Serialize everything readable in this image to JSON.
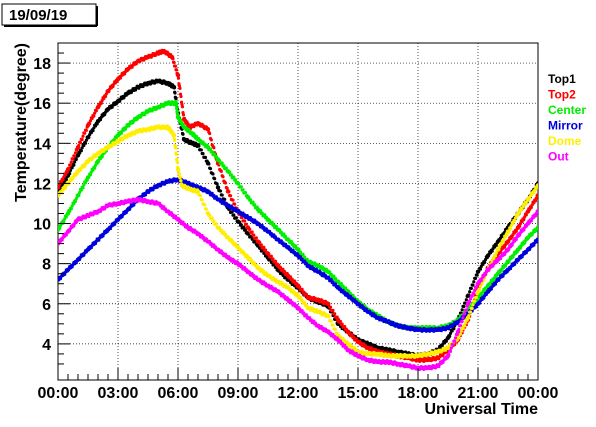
{
  "date_label": "19/09/19",
  "chart_data": {
    "type": "scatter",
    "xlabel": "Universal Time",
    "ylabel": "Temperature(degree)",
    "xlim": [
      0,
      24
    ],
    "ylim": [
      2.2,
      19.0
    ],
    "x_ticks": [
      {
        "value": 0,
        "label": "00:00"
      },
      {
        "value": 3,
        "label": "03:00"
      },
      {
        "value": 6,
        "label": "06:00"
      },
      {
        "value": 9,
        "label": "09:00"
      },
      {
        "value": 12,
        "label": "12:00"
      },
      {
        "value": 15,
        "label": "15:00"
      },
      {
        "value": 18,
        "label": "18:00"
      },
      {
        "value": 21,
        "label": "21:00"
      },
      {
        "value": 24,
        "label": "00:00"
      }
    ],
    "y_ticks": [
      4,
      6,
      8,
      10,
      12,
      14,
      16,
      18
    ],
    "grid": true,
    "legend_position": "right",
    "series": [
      {
        "name": "Top1",
        "color": "#000000",
        "points": [
          [
            0,
            11.6
          ],
          [
            0.5,
            12.4
          ],
          [
            1,
            13.4
          ],
          [
            1.5,
            14.3
          ],
          [
            2,
            15.1
          ],
          [
            2.5,
            15.7
          ],
          [
            3,
            16.1
          ],
          [
            3.5,
            16.5
          ],
          [
            4,
            16.8
          ],
          [
            4.5,
            17.0
          ],
          [
            5,
            17.1
          ],
          [
            5.5,
            17.0
          ],
          [
            5.8,
            16.8
          ],
          [
            6.0,
            15.5
          ],
          [
            6.3,
            14.2
          ],
          [
            6.7,
            14.0
          ],
          [
            7.0,
            13.9
          ],
          [
            7.5,
            13.0
          ],
          [
            8,
            11.8
          ],
          [
            8.5,
            10.8
          ],
          [
            9,
            10.1
          ],
          [
            9.5,
            9.5
          ],
          [
            10,
            8.9
          ],
          [
            10.5,
            8.3
          ],
          [
            11,
            7.7
          ],
          [
            11.5,
            7.2
          ],
          [
            12,
            6.8
          ],
          [
            12.5,
            6.3
          ],
          [
            13,
            6.1
          ],
          [
            13.5,
            5.9
          ],
          [
            14,
            5.0
          ],
          [
            14.5,
            4.6
          ],
          [
            15,
            4.2
          ],
          [
            15.5,
            4.0
          ],
          [
            16,
            3.8
          ],
          [
            16.5,
            3.7
          ],
          [
            17,
            3.6
          ],
          [
            17.5,
            3.5
          ],
          [
            18,
            3.4
          ],
          [
            18.5,
            3.5
          ],
          [
            19,
            3.7
          ],
          [
            19.5,
            4.3
          ],
          [
            20,
            5.2
          ],
          [
            20.5,
            6.4
          ],
          [
            21,
            7.6
          ],
          [
            21.5,
            8.4
          ],
          [
            22,
            9.1
          ],
          [
            22.5,
            9.8
          ],
          [
            23,
            10.5
          ],
          [
            23.5,
            11.2
          ],
          [
            24,
            12.0
          ]
        ]
      },
      {
        "name": "Top2",
        "color": "#ff0000",
        "points": [
          [
            0,
            11.8
          ],
          [
            0.5,
            12.7
          ],
          [
            1,
            13.8
          ],
          [
            1.5,
            14.9
          ],
          [
            2,
            15.8
          ],
          [
            2.5,
            16.6
          ],
          [
            3,
            17.2
          ],
          [
            3.5,
            17.7
          ],
          [
            4,
            18.1
          ],
          [
            4.5,
            18.3
          ],
          [
            5,
            18.5
          ],
          [
            5.3,
            18.6
          ],
          [
            5.7,
            18.3
          ],
          [
            6.0,
            17.4
          ],
          [
            6.3,
            15.2
          ],
          [
            6.6,
            14.8
          ],
          [
            7.0,
            15.0
          ],
          [
            7.5,
            14.7
          ],
          [
            8,
            13.0
          ],
          [
            8.5,
            11.6
          ],
          [
            9,
            10.6
          ],
          [
            9.5,
            9.8
          ],
          [
            10,
            9.1
          ],
          [
            10.5,
            8.5
          ],
          [
            11,
            7.9
          ],
          [
            11.5,
            7.4
          ],
          [
            12,
            6.9
          ],
          [
            12.5,
            6.3
          ],
          [
            13,
            6.2
          ],
          [
            13.5,
            6.0
          ],
          [
            14,
            5.2
          ],
          [
            14.5,
            4.6
          ],
          [
            15,
            4.1
          ],
          [
            15.5,
            3.8
          ],
          [
            16,
            3.6
          ],
          [
            16.5,
            3.5
          ],
          [
            17,
            3.4
          ],
          [
            17.5,
            3.3
          ],
          [
            18,
            3.2
          ],
          [
            18.5,
            3.2
          ],
          [
            19,
            3.3
          ],
          [
            19.5,
            3.7
          ],
          [
            20,
            4.2
          ],
          [
            20.5,
            5.2
          ],
          [
            21,
            6.7
          ],
          [
            21.5,
            7.8
          ],
          [
            22,
            8.5
          ],
          [
            22.5,
            9.1
          ],
          [
            23,
            9.8
          ],
          [
            23.5,
            10.6
          ],
          [
            24,
            11.4
          ]
        ]
      },
      {
        "name": "Center",
        "color": "#00ee00",
        "points": [
          [
            0,
            9.7
          ],
          [
            0.5,
            10.5
          ],
          [
            1,
            11.4
          ],
          [
            1.5,
            12.3
          ],
          [
            2,
            13.1
          ],
          [
            2.5,
            13.8
          ],
          [
            3,
            14.4
          ],
          [
            3.5,
            14.9
          ],
          [
            4,
            15.3
          ],
          [
            4.5,
            15.6
          ],
          [
            5,
            15.8
          ],
          [
            5.5,
            16.0
          ],
          [
            5.9,
            16.0
          ],
          [
            6.0,
            15.3
          ],
          [
            6.3,
            14.8
          ],
          [
            6.7,
            14.5
          ],
          [
            7,
            14.2
          ],
          [
            7.5,
            13.8
          ],
          [
            8,
            13.2
          ],
          [
            8.5,
            12.6
          ],
          [
            9,
            12.0
          ],
          [
            9.5,
            11.3
          ],
          [
            10,
            10.7
          ],
          [
            10.5,
            10.2
          ],
          [
            11,
            9.7
          ],
          [
            11.5,
            9.2
          ],
          [
            12,
            8.7
          ],
          [
            12.5,
            8.1
          ],
          [
            13,
            7.9
          ],
          [
            13.5,
            7.6
          ],
          [
            14,
            7.1
          ],
          [
            14.5,
            6.6
          ],
          [
            15,
            6.1
          ],
          [
            15.5,
            5.7
          ],
          [
            16,
            5.4
          ],
          [
            16.5,
            5.1
          ],
          [
            17,
            4.9
          ],
          [
            17.5,
            4.8
          ],
          [
            18,
            4.8
          ],
          [
            18.5,
            4.8
          ],
          [
            19,
            4.8
          ],
          [
            19.5,
            4.9
          ],
          [
            20,
            5.2
          ],
          [
            20.5,
            5.7
          ],
          [
            21,
            6.3
          ],
          [
            21.5,
            6.9
          ],
          [
            22,
            7.5
          ],
          [
            22.5,
            8.1
          ],
          [
            23,
            8.7
          ],
          [
            23.5,
            9.3
          ],
          [
            24,
            9.8
          ]
        ]
      },
      {
        "name": "Mirror",
        "color": "#0000dd",
        "points": [
          [
            0,
            7.2
          ],
          [
            0.5,
            7.7
          ],
          [
            1,
            8.2
          ],
          [
            1.5,
            8.7
          ],
          [
            2,
            9.2
          ],
          [
            2.5,
            9.7
          ],
          [
            3,
            10.2
          ],
          [
            3.5,
            10.7
          ],
          [
            4,
            11.2
          ],
          [
            4.5,
            11.6
          ],
          [
            5,
            11.9
          ],
          [
            5.5,
            12.1
          ],
          [
            6,
            12.2
          ],
          [
            6.5,
            12.0
          ],
          [
            7,
            11.8
          ],
          [
            7.5,
            11.6
          ],
          [
            8,
            11.2
          ],
          [
            8.5,
            10.9
          ],
          [
            9,
            10.6
          ],
          [
            9.5,
            10.3
          ],
          [
            10,
            10.0
          ],
          [
            10.5,
            9.6
          ],
          [
            11,
            9.2
          ],
          [
            11.5,
            8.8
          ],
          [
            12,
            8.4
          ],
          [
            12.5,
            7.9
          ],
          [
            13,
            7.6
          ],
          [
            13.5,
            7.3
          ],
          [
            14,
            6.8
          ],
          [
            14.5,
            6.4
          ],
          [
            15,
            6.0
          ],
          [
            15.5,
            5.6
          ],
          [
            16,
            5.3
          ],
          [
            16.5,
            5.1
          ],
          [
            17,
            4.9
          ],
          [
            17.5,
            4.8
          ],
          [
            18,
            4.7
          ],
          [
            18.5,
            4.7
          ],
          [
            19,
            4.7
          ],
          [
            19.5,
            4.8
          ],
          [
            20,
            5.1
          ],
          [
            20.5,
            5.5
          ],
          [
            21,
            6.0
          ],
          [
            21.5,
            6.6
          ],
          [
            22,
            7.2
          ],
          [
            22.5,
            7.7
          ],
          [
            23,
            8.2
          ],
          [
            23.5,
            8.7
          ],
          [
            24,
            9.2
          ]
        ]
      },
      {
        "name": "Dome",
        "color": "#ffee00",
        "points": [
          [
            0,
            11.4
          ],
          [
            0.5,
            12.0
          ],
          [
            1,
            12.6
          ],
          [
            1.5,
            13.1
          ],
          [
            2,
            13.5
          ],
          [
            2.5,
            13.8
          ],
          [
            3,
            14.1
          ],
          [
            3.5,
            14.4
          ],
          [
            4,
            14.6
          ],
          [
            4.5,
            14.7
          ],
          [
            5,
            14.8
          ],
          [
            5.5,
            14.8
          ],
          [
            5.8,
            14.4
          ],
          [
            6.0,
            12.7
          ],
          [
            6.2,
            11.9
          ],
          [
            6.6,
            11.7
          ],
          [
            7.0,
            11.6
          ],
          [
            7.5,
            10.5
          ],
          [
            8,
            9.8
          ],
          [
            8.5,
            9.3
          ],
          [
            9,
            8.8
          ],
          [
            9.5,
            8.3
          ],
          [
            10,
            7.8
          ],
          [
            10.5,
            7.4
          ],
          [
            11,
            7.1
          ],
          [
            11.5,
            6.8
          ],
          [
            12,
            6.4
          ],
          [
            12.5,
            5.8
          ],
          [
            13,
            5.6
          ],
          [
            13.5,
            5.4
          ],
          [
            14,
            4.4
          ],
          [
            14.5,
            4.0
          ],
          [
            15,
            3.6
          ],
          [
            15.5,
            3.5
          ],
          [
            16,
            3.5
          ],
          [
            16.5,
            3.4
          ],
          [
            17,
            3.4
          ],
          [
            17.5,
            3.4
          ],
          [
            18,
            3.4
          ],
          [
            18.5,
            3.5
          ],
          [
            19,
            3.6
          ],
          [
            19.5,
            3.8
          ],
          [
            20,
            4.3
          ],
          [
            20.5,
            5.3
          ],
          [
            21,
            6.6
          ],
          [
            21.5,
            7.7
          ],
          [
            22,
            8.7
          ],
          [
            22.5,
            9.6
          ],
          [
            23,
            10.5
          ],
          [
            23.5,
            11.2
          ],
          [
            24,
            11.9
          ]
        ]
      },
      {
        "name": "Out",
        "color": "#ff00ff",
        "points": [
          [
            0,
            9.0
          ],
          [
            0.5,
            9.6
          ],
          [
            1,
            10.2
          ],
          [
            1.5,
            10.4
          ],
          [
            2,
            10.6
          ],
          [
            2.5,
            10.9
          ],
          [
            3,
            11.0
          ],
          [
            3.5,
            11.1
          ],
          [
            4,
            11.2
          ],
          [
            4.5,
            11.1
          ],
          [
            5,
            11.0
          ],
          [
            5.5,
            10.6
          ],
          [
            6,
            10.2
          ],
          [
            6.5,
            9.8
          ],
          [
            7,
            9.5
          ],
          [
            7.5,
            9.1
          ],
          [
            8,
            8.7
          ],
          [
            8.5,
            8.3
          ],
          [
            9,
            8.0
          ],
          [
            9.5,
            7.6
          ],
          [
            10,
            7.2
          ],
          [
            10.5,
            6.9
          ],
          [
            11,
            6.6
          ],
          [
            11.5,
            6.2
          ],
          [
            12,
            5.8
          ],
          [
            12.5,
            5.3
          ],
          [
            13,
            4.9
          ],
          [
            13.5,
            4.6
          ],
          [
            14,
            4.2
          ],
          [
            14.5,
            3.7
          ],
          [
            15,
            3.4
          ],
          [
            15.5,
            3.2
          ],
          [
            16,
            3.1
          ],
          [
            16.5,
            3.1
          ],
          [
            17,
            3.0
          ],
          [
            17.5,
            2.9
          ],
          [
            18,
            2.8
          ],
          [
            18.5,
            2.8
          ],
          [
            19,
            2.9
          ],
          [
            19.5,
            3.4
          ],
          [
            20,
            4.6
          ],
          [
            20.5,
            6.0
          ],
          [
            21,
            7.0
          ],
          [
            21.5,
            7.7
          ],
          [
            22,
            8.2
          ],
          [
            22.5,
            8.7
          ],
          [
            23,
            9.4
          ],
          [
            23.5,
            10.0
          ],
          [
            24,
            10.6
          ]
        ]
      }
    ]
  }
}
